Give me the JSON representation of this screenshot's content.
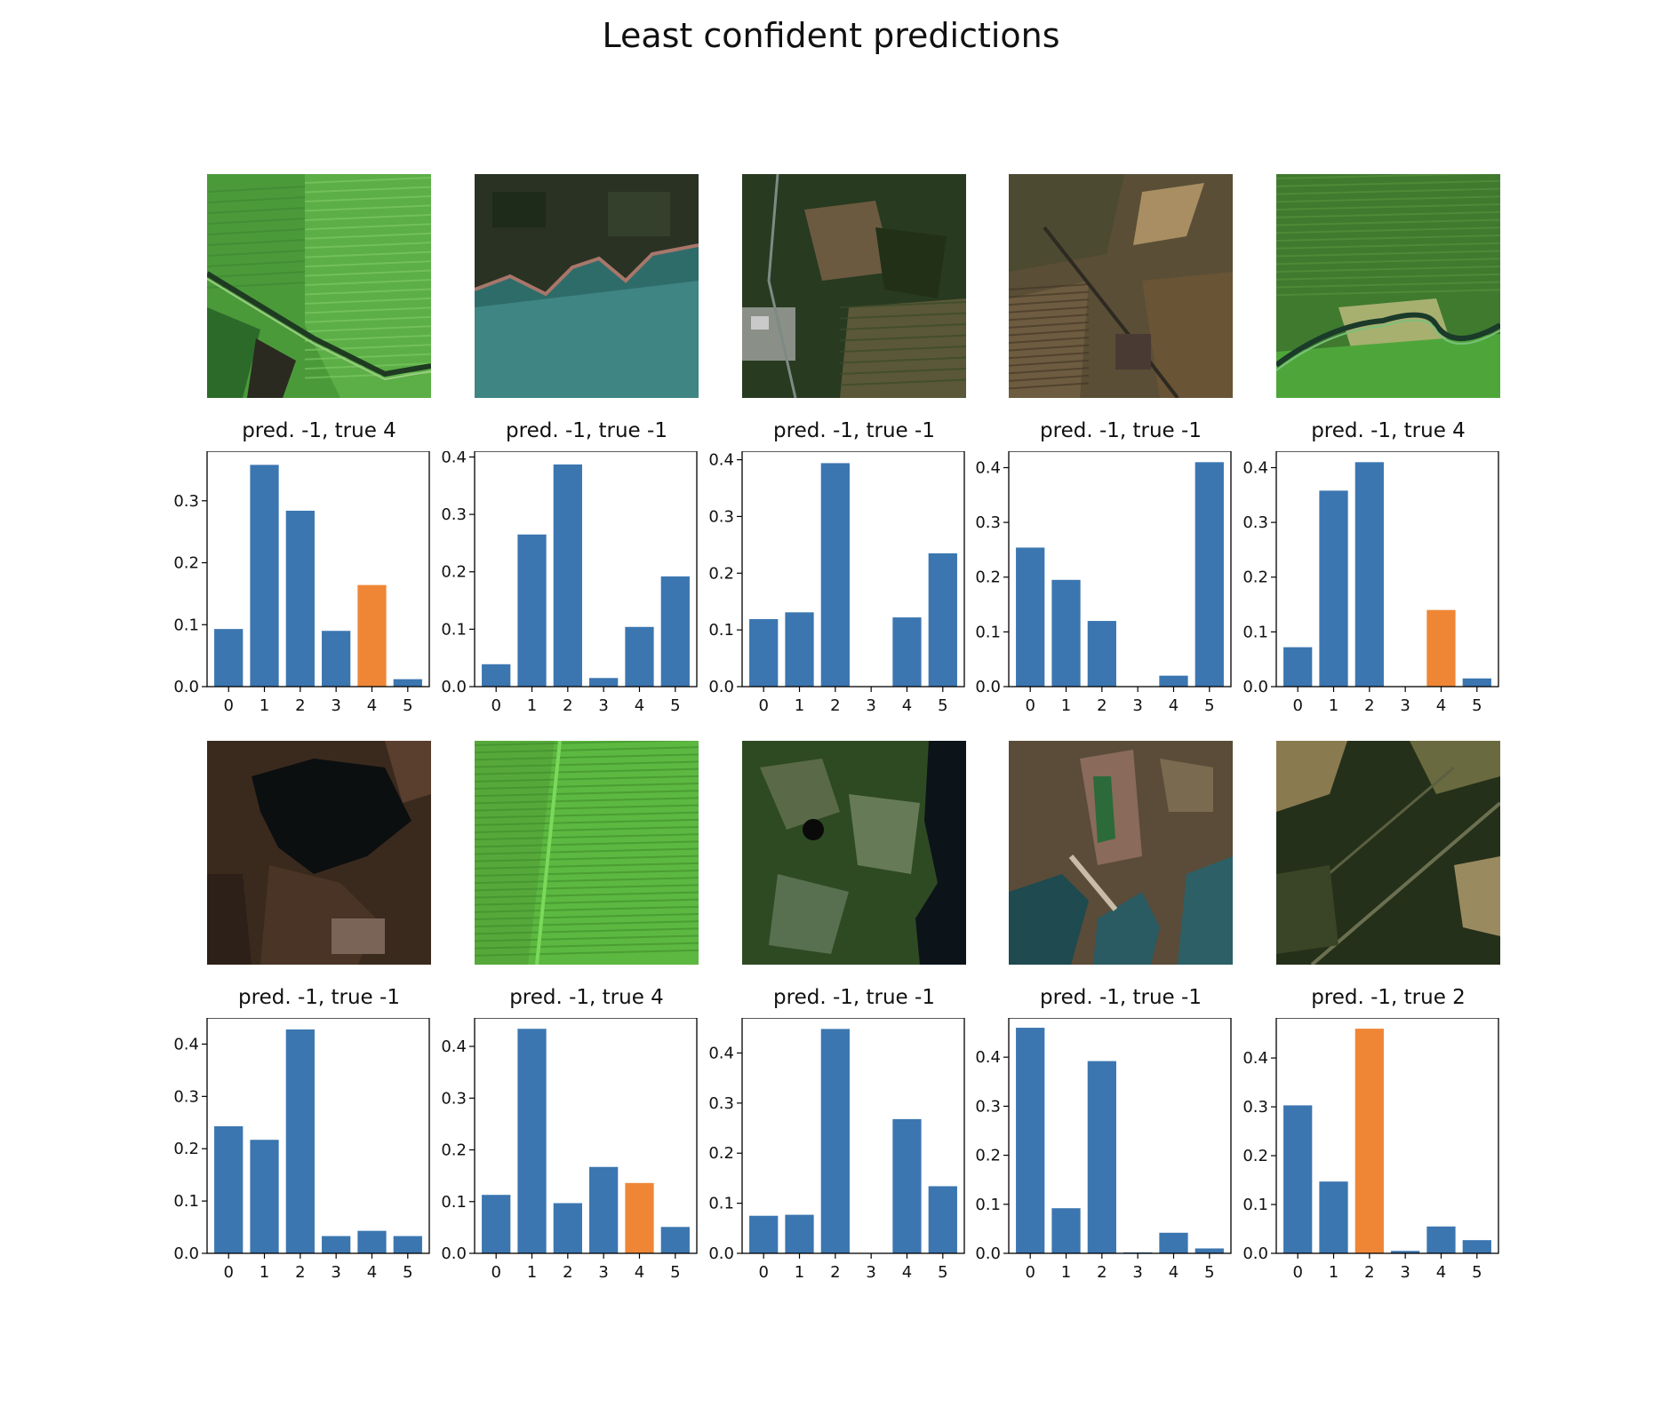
{
  "figure": {
    "title": "Least confident predictions"
  },
  "colors": {
    "bar": "#3b76b0",
    "highlight": "#ef8636",
    "frame": "#000000"
  },
  "chart_data": [
    {
      "type": "bar",
      "title": "pred. -1, true 4",
      "categories": [
        "0",
        "1",
        "2",
        "3",
        "4",
        "5"
      ],
      "values": [
        0.093,
        0.358,
        0.284,
        0.09,
        0.164,
        0.012
      ],
      "highlight_index": 4,
      "ylim": [
        0,
        0.38
      ],
      "yticks": [
        "0.0",
        "0.1",
        "0.2",
        "0.3"
      ],
      "tile": "field-road"
    },
    {
      "type": "bar",
      "title": "pred. -1, true -1",
      "categories": [
        "0",
        "1",
        "2",
        "3",
        "4",
        "5"
      ],
      "values": [
        0.039,
        0.265,
        0.387,
        0.015,
        0.104,
        0.192
      ],
      "highlight_index": null,
      "ylim": [
        0,
        0.41
      ],
      "yticks": [
        "0.0",
        "0.1",
        "0.2",
        "0.3",
        "0.4"
      ],
      "tile": "lake-shore"
    },
    {
      "type": "bar",
      "title": "pred. -1, true -1",
      "categories": [
        "0",
        "1",
        "2",
        "3",
        "4",
        "5"
      ],
      "values": [
        0.119,
        0.131,
        0.394,
        0.0,
        0.122,
        0.235
      ],
      "highlight_index": null,
      "ylim": [
        0,
        0.415
      ],
      "yticks": [
        "0.0",
        "0.1",
        "0.2",
        "0.3",
        "0.4"
      ],
      "tile": "forest-village"
    },
    {
      "type": "bar",
      "title": "pred. -1, true -1",
      "categories": [
        "0",
        "1",
        "2",
        "3",
        "4",
        "5"
      ],
      "values": [
        0.254,
        0.195,
        0.12,
        0.0,
        0.02,
        0.41
      ],
      "highlight_index": null,
      "ylim": [
        0,
        0.43
      ],
      "yticks": [
        "0.0",
        "0.1",
        "0.2",
        "0.3",
        "0.4"
      ],
      "tile": "farmland-town"
    },
    {
      "type": "bar",
      "title": "pred. -1, true 4",
      "categories": [
        "0",
        "1",
        "2",
        "3",
        "4",
        "5"
      ],
      "values": [
        0.072,
        0.358,
        0.41,
        0.0,
        0.14,
        0.015
      ],
      "highlight_index": 4,
      "ylim": [
        0,
        0.43
      ],
      "yticks": [
        "0.0",
        "0.1",
        "0.2",
        "0.3",
        "0.4"
      ],
      "tile": "river-field"
    },
    {
      "type": "bar",
      "title": "pred. -1, true -1",
      "categories": [
        "0",
        "1",
        "2",
        "3",
        "4",
        "5"
      ],
      "values": [
        0.243,
        0.217,
        0.428,
        0.033,
        0.043,
        0.033
      ],
      "highlight_index": null,
      "ylim": [
        0,
        0.45
      ],
      "yticks": [
        "0.0",
        "0.1",
        "0.2",
        "0.3",
        "0.4"
      ],
      "tile": "dark-lake"
    },
    {
      "type": "bar",
      "title": "pred. -1, true 4",
      "categories": [
        "0",
        "1",
        "2",
        "3",
        "4",
        "5"
      ],
      "values": [
        0.113,
        0.434,
        0.097,
        0.167,
        0.136,
        0.051
      ],
      "highlight_index": 4,
      "ylim": [
        0,
        0.455
      ],
      "yticks": [
        "0.0",
        "0.1",
        "0.2",
        "0.3",
        "0.4"
      ],
      "tile": "green-field"
    },
    {
      "type": "bar",
      "title": "pred. -1, true -1",
      "categories": [
        "0",
        "1",
        "2",
        "3",
        "4",
        "5"
      ],
      "values": [
        0.075,
        0.077,
        0.448,
        0.0,
        0.268,
        0.134
      ],
      "highlight_index": null,
      "ylim": [
        0,
        0.47
      ],
      "yticks": [
        "0.0",
        "0.1",
        "0.2",
        "0.3",
        "0.4"
      ],
      "tile": "forest-coast"
    },
    {
      "type": "bar",
      "title": "pred. -1, true -1",
      "categories": [
        "0",
        "1",
        "2",
        "3",
        "4",
        "5"
      ],
      "values": [
        0.46,
        0.092,
        0.392,
        0.002,
        0.042,
        0.01
      ],
      "highlight_index": null,
      "ylim": [
        0,
        0.48
      ],
      "yticks": [
        "0.0",
        "0.1",
        "0.2",
        "0.3",
        "0.4"
      ],
      "tile": "harbor"
    },
    {
      "type": "bar",
      "title": "pred. -1, true 2",
      "categories": [
        "0",
        "1",
        "2",
        "3",
        "4",
        "5"
      ],
      "values": [
        0.303,
        0.147,
        0.46,
        0.005,
        0.055,
        0.027
      ],
      "highlight_index": 2,
      "ylim": [
        0,
        0.482
      ],
      "yticks": [
        "0.0",
        "0.1",
        "0.2",
        "0.3",
        "0.4"
      ],
      "tile": "dark-forest"
    }
  ]
}
